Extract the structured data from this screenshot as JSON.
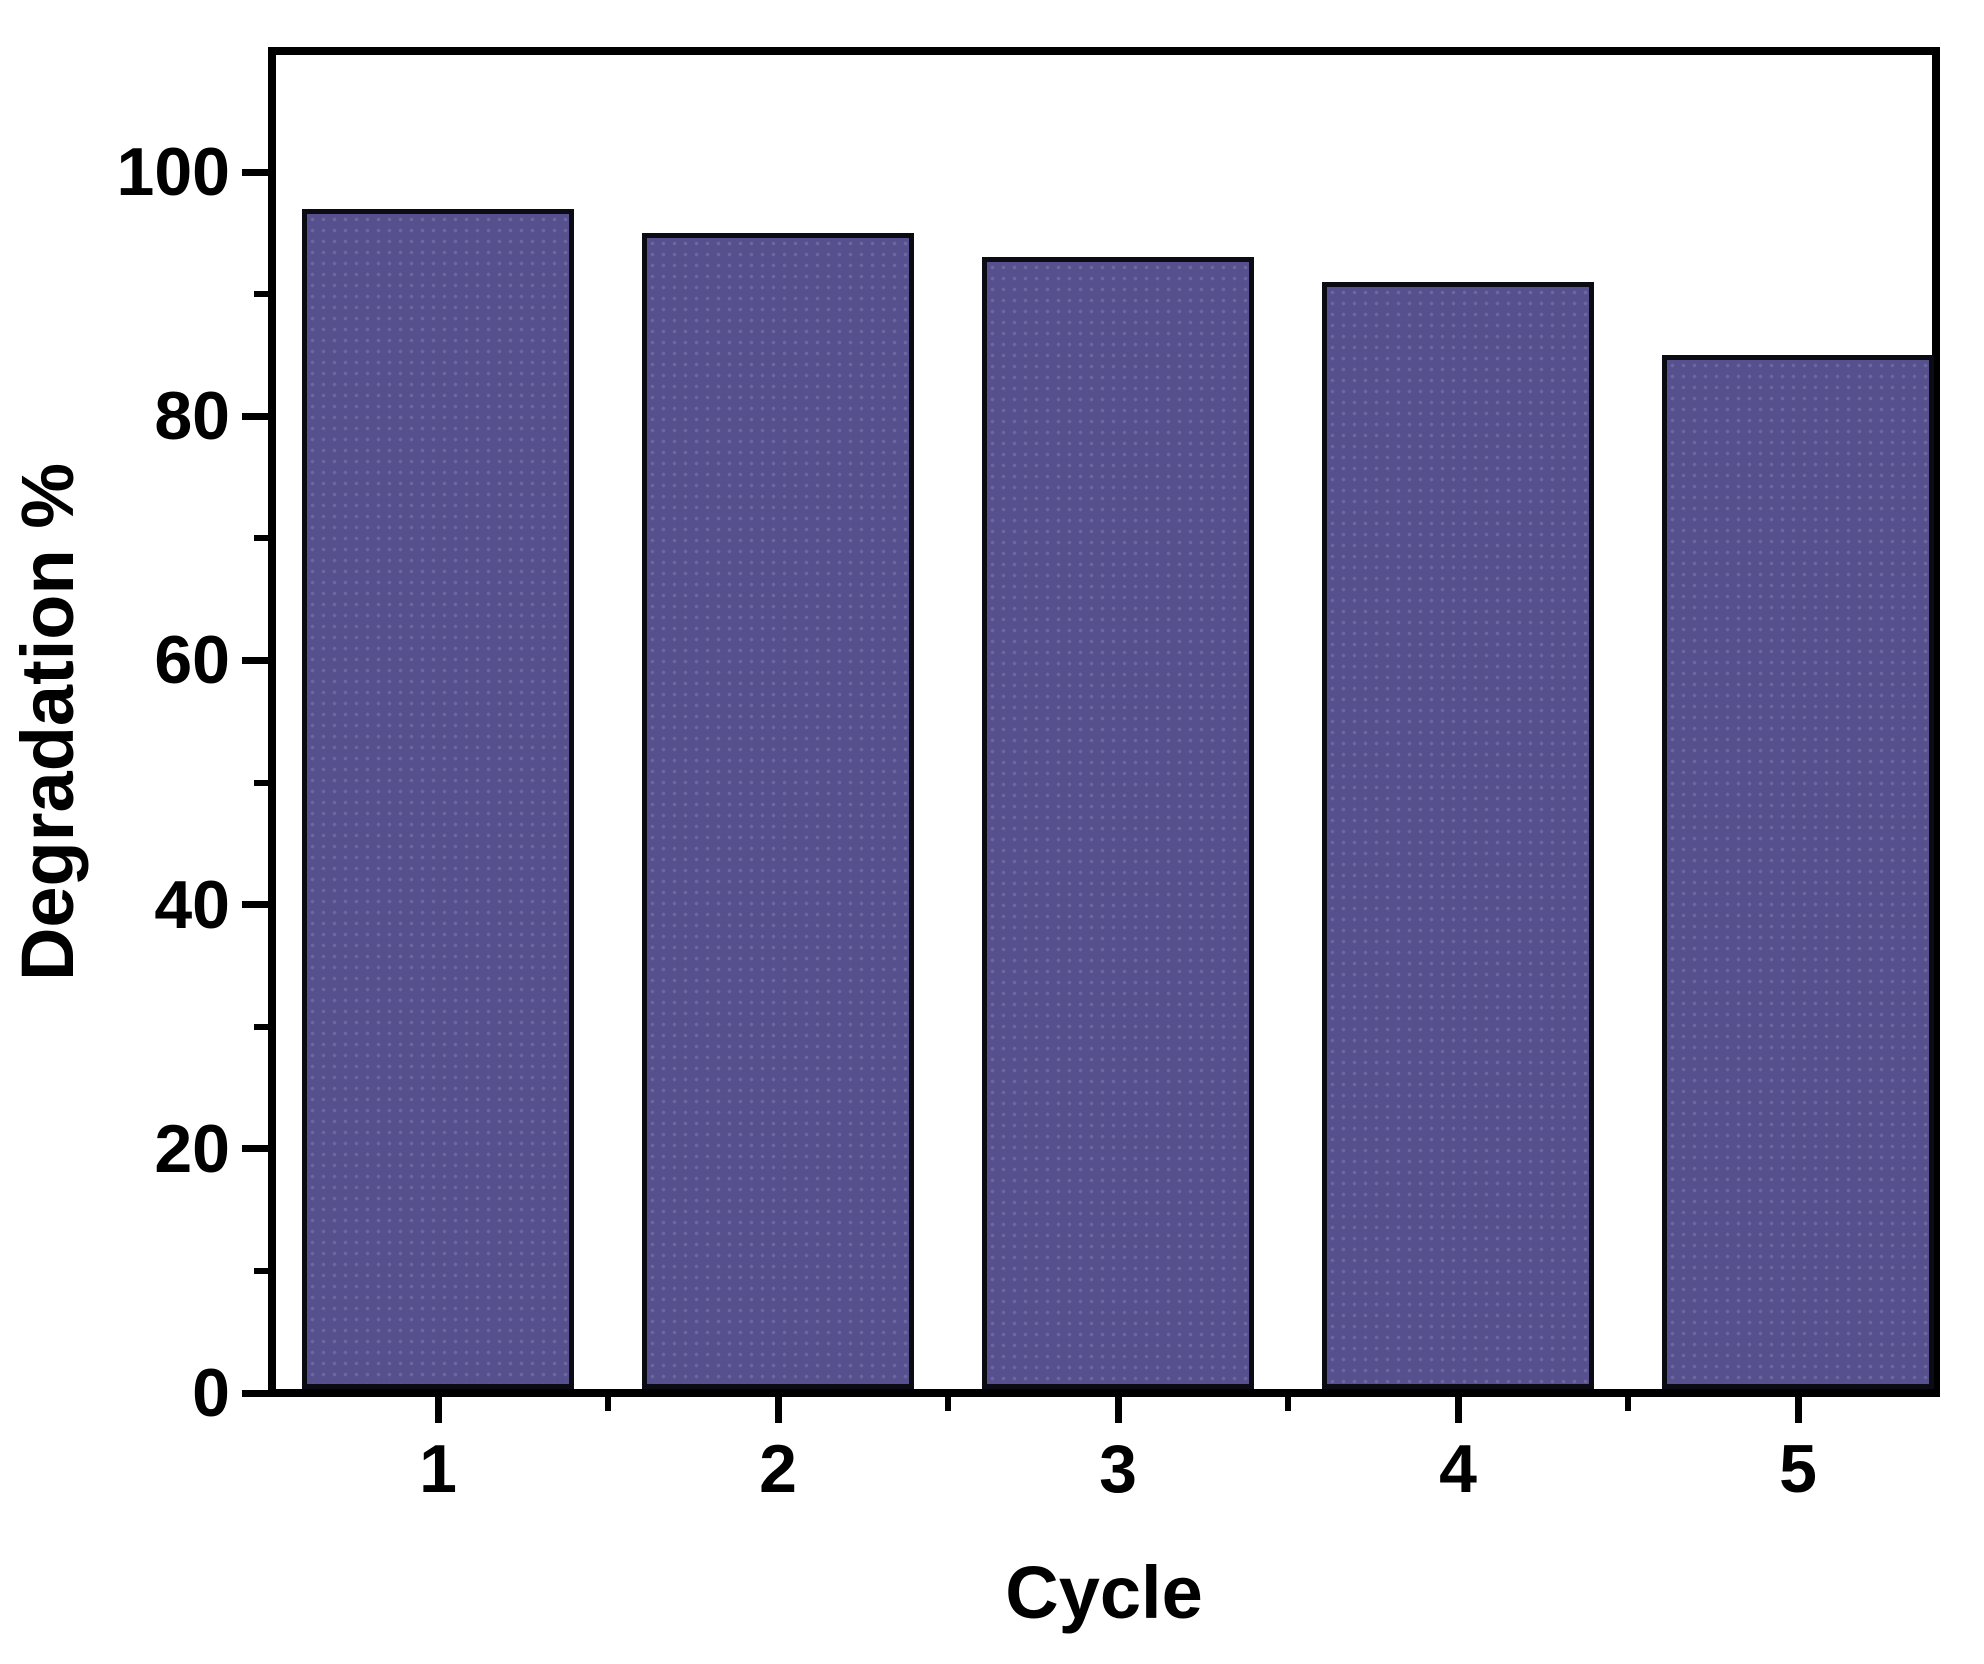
{
  "chart_data": {
    "type": "bar",
    "title": "",
    "xlabel": "Cycle",
    "ylabel": "Degradation %",
    "categories": [
      "1",
      "2",
      "3",
      "4",
      "5"
    ],
    "values": [
      97,
      95,
      93,
      91,
      85
    ],
    "ylim": [
      0,
      110
    ],
    "yticks_major": [
      0,
      20,
      40,
      60,
      80,
      100
    ],
    "yticks_minor": [
      10,
      30,
      50,
      70,
      90
    ],
    "grid": false,
    "legend": null,
    "colors": {
      "bar_fill": "#56508F",
      "bar_border": "#0b0b14",
      "axis": "#000000",
      "text": "#000000",
      "background": "#FFFFFF"
    }
  }
}
